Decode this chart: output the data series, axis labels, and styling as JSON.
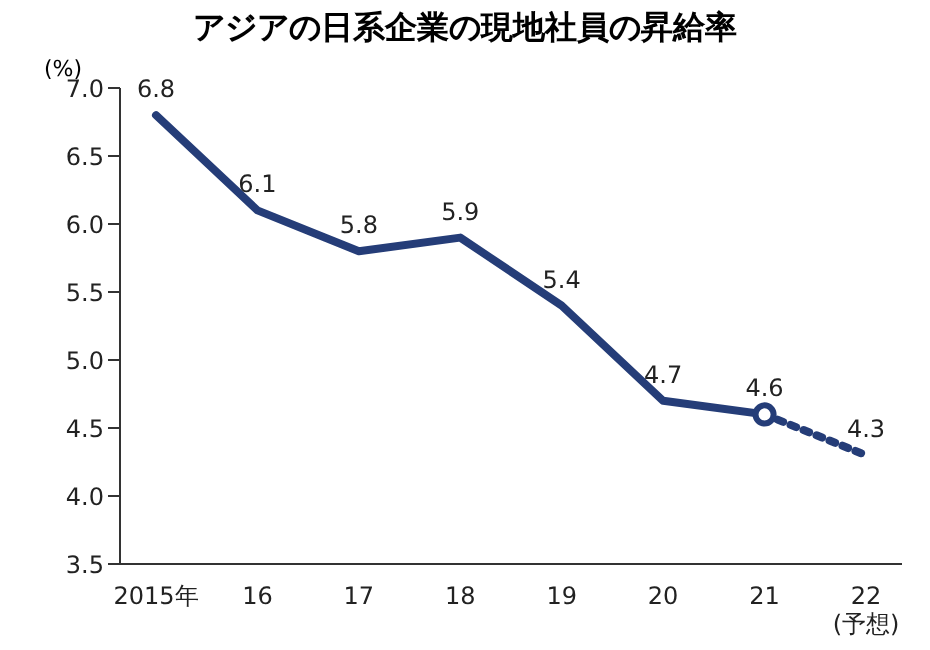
{
  "chart_data": {
    "type": "line",
    "title": "アジアの日系企業の現地社員の昇給率",
    "ylabel": "(%)",
    "categories": [
      "2015年",
      "16",
      "17",
      "18",
      "19",
      "20",
      "21",
      "22\n(予想)"
    ],
    "ylim": [
      3.5,
      7.0
    ],
    "yticks": [
      {
        "value": 3.5,
        "label": "3.5"
      },
      {
        "value": 4,
        "label": "4.0"
      },
      {
        "value": 4.5,
        "label": "4.5"
      },
      {
        "value": 5,
        "label": "5.0"
      },
      {
        "value": 5.5,
        "label": "5.5"
      },
      {
        "value": 6,
        "label": "6.0"
      },
      {
        "value": 6.5,
        "label": "6.5"
      },
      {
        "value": 7,
        "label": "7.0"
      }
    ],
    "grid": false,
    "legend": false,
    "series": [
      {
        "color": "#253d78",
        "line_style": "solid",
        "marker": "none",
        "values": [
          6.8,
          6.1,
          5.8,
          5.9,
          5.4,
          4.7,
          4.6,
          null
        ],
        "value_labels": [
          "6.8",
          "6.1",
          "5.8",
          "5.9",
          "5.4",
          "4.7",
          "4.6",
          null
        ]
      },
      {
        "color": "#253d78",
        "line_style": "dotted",
        "marker": "none",
        "values": [
          null,
          null,
          null,
          null,
          null,
          null,
          4.6,
          4.3
        ],
        "value_labels": [
          null,
          null,
          null,
          null,
          null,
          null,
          null,
          "4.3"
        ]
      },
      {
        "type": "scatter",
        "color": "#253d78",
        "marker": "circle",
        "values": [
          null,
          null,
          null,
          null,
          null,
          null,
          4.6,
          null
        ]
      }
    ]
  }
}
